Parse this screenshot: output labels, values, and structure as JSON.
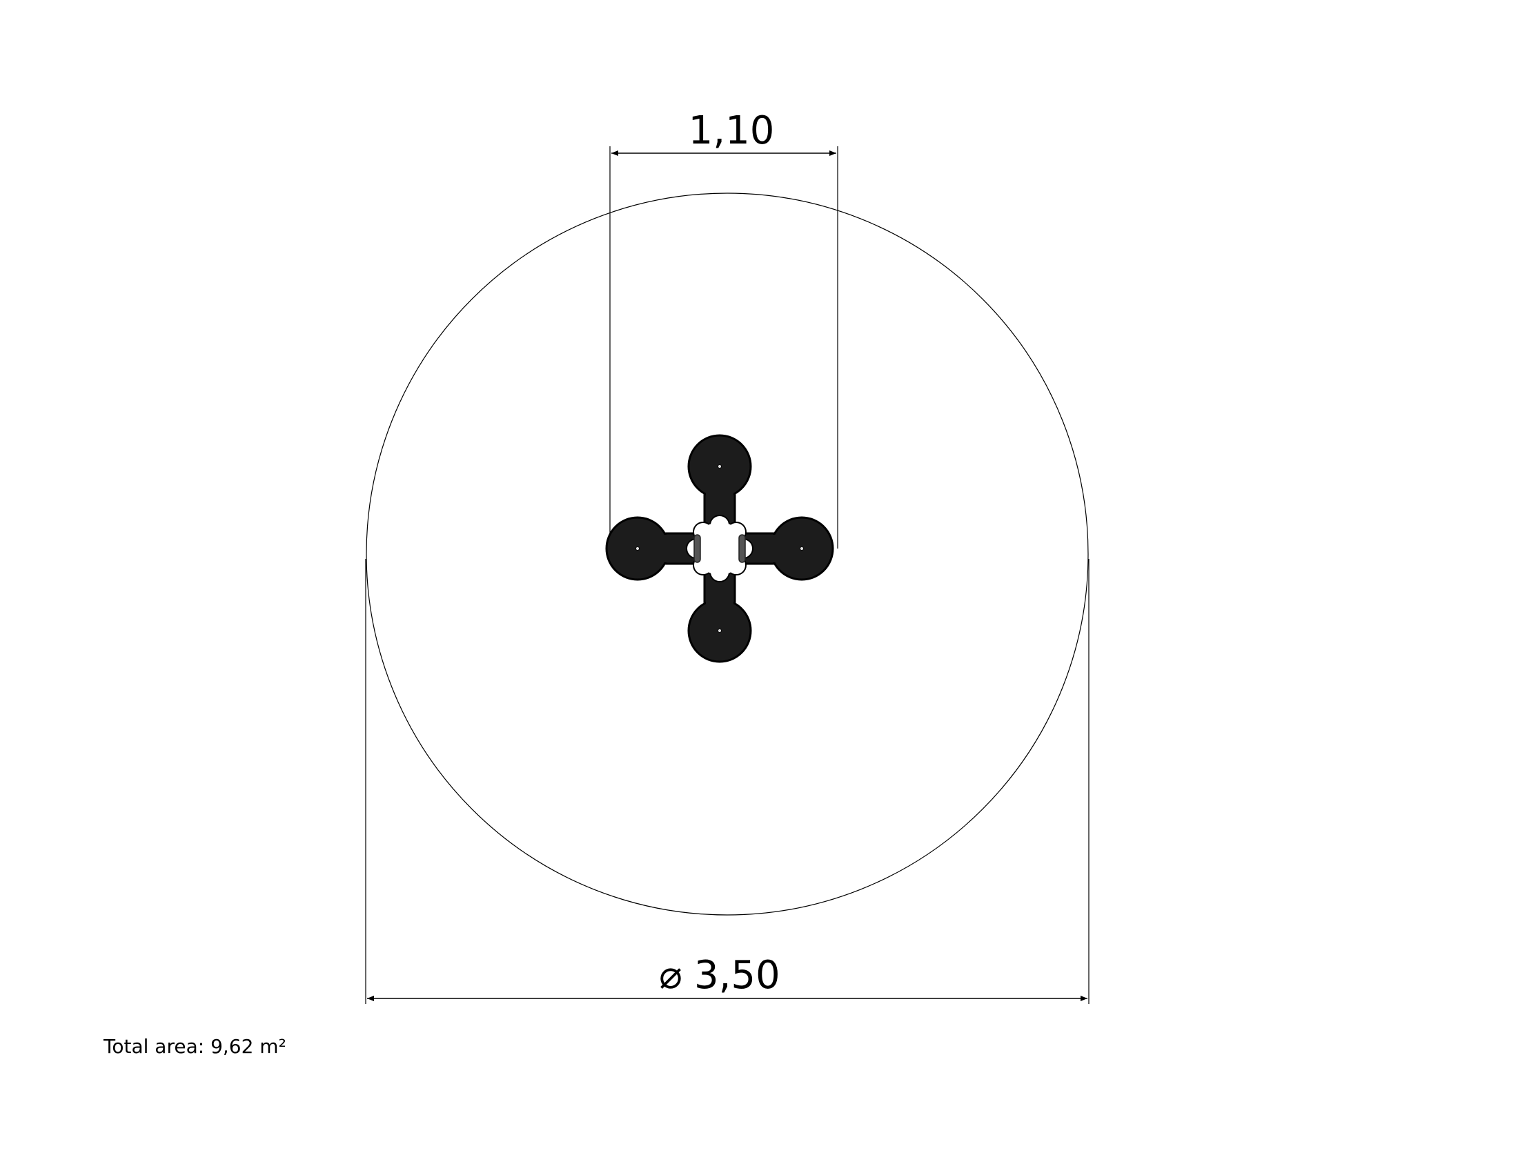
{
  "drawing": {
    "dimension_width": "1,10",
    "dimension_diameter": "3,50",
    "diameter_symbol": "⌀",
    "total_area_note": "Total area: 9,62 m²"
  },
  "colors": {
    "line": "#000000",
    "part_fill": "#1c1c1c",
    "slot_fill": "#555555"
  }
}
